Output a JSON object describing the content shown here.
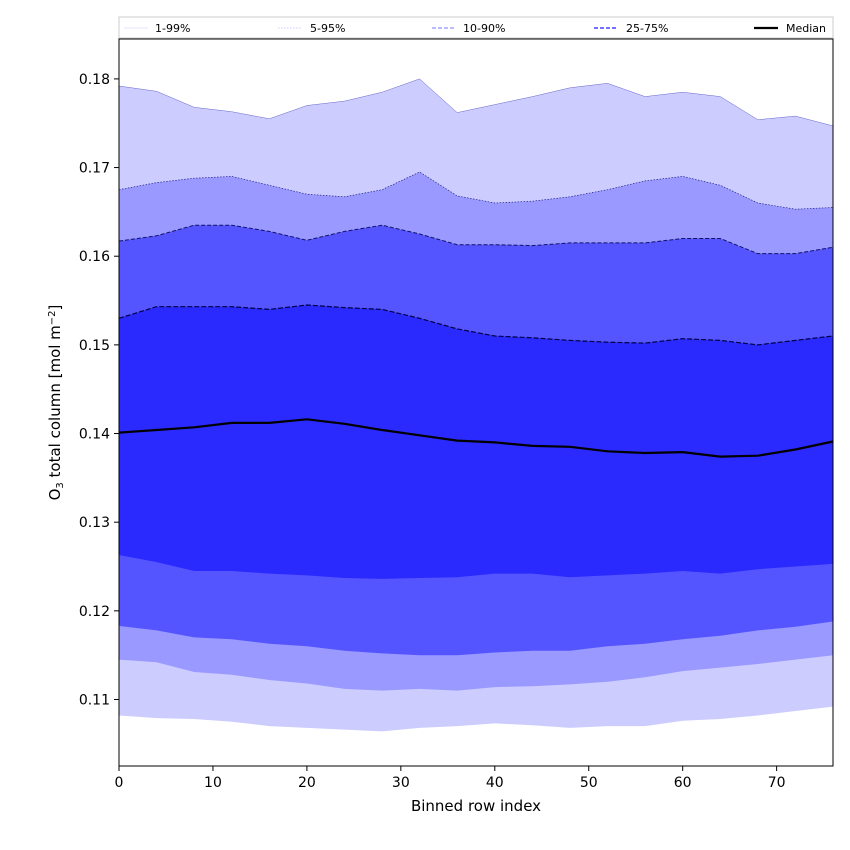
{
  "chart_data": {
    "type": "area",
    "xlabel": "Binned row index",
    "ylabel_prefix": "O",
    "ylabel_sub": "3",
    "ylabel_middle": " total column [mol m",
    "ylabel_sup": "−2",
    "ylabel_suffix": "]",
    "xlim": [
      0,
      76
    ],
    "ylim": [
      0.1025,
      0.1845
    ],
    "x_ticks": [
      0,
      10,
      20,
      30,
      40,
      50,
      60,
      70
    ],
    "y_ticks": [
      0.11,
      0.12,
      0.13,
      0.14,
      0.15,
      0.16,
      0.17,
      0.18
    ],
    "legend_position": "top",
    "legend": [
      {
        "label": "1-99%",
        "color": "#ccccff",
        "dash": "solid",
        "width": 0.6
      },
      {
        "label": "5-95%",
        "color": "#9999ff",
        "dash": "dotted",
        "width": 0.6
      },
      {
        "label": "10-90%",
        "color": "#7777ff",
        "dash": "dashed",
        "width": 1.0
      },
      {
        "label": "25-75%",
        "color": "#4444ff",
        "dash": "dashed",
        "width": 1.4
      },
      {
        "label": "Median",
        "color": "#000000",
        "dash": "solid",
        "width": 2.2
      }
    ],
    "x": [
      0,
      4,
      8,
      12,
      16,
      20,
      24,
      28,
      32,
      36,
      40,
      44,
      48,
      52,
      56,
      60,
      64,
      68,
      72,
      76
    ],
    "bands": [
      {
        "name": "1-99%",
        "fill": "#ccccff",
        "edge": "#7777cc",
        "edge_width": 0.5,
        "dash": "",
        "lower": [
          0.1082,
          0.1079,
          0.1078,
          0.1075,
          0.107,
          0.1068,
          0.1066,
          0.1064,
          0.1068,
          0.107,
          0.1073,
          0.1071,
          0.1068,
          0.107,
          0.107,
          0.1076,
          0.1078,
          0.1082,
          0.1087,
          0.1092
        ],
        "upper": [
          0.1792,
          0.1786,
          0.1768,
          0.1763,
          0.1755,
          0.177,
          0.1775,
          0.1785,
          0.18,
          0.1762,
          0.1771,
          0.178,
          0.179,
          0.1795,
          0.178,
          0.1785,
          0.178,
          0.1754,
          0.1758,
          0.1747
        ]
      },
      {
        "name": "5-95%",
        "fill": "#9999ff",
        "edge": "#333399",
        "edge_width": 0.6,
        "dash": "1.5,1.5",
        "lower": [
          0.1145,
          0.1142,
          0.1131,
          0.1128,
          0.1122,
          0.1118,
          0.1112,
          0.111,
          0.1112,
          0.111,
          0.1114,
          0.1115,
          0.1117,
          0.112,
          0.1125,
          0.1132,
          0.1136,
          0.114,
          0.1145,
          0.115
        ]
      },
      {
        "name": "10-90%",
        "fill": "#5555ff",
        "edge": "#1a1a80",
        "edge_width": 1.0,
        "dash": "4,2",
        "lower": [
          0.1183,
          0.1178,
          0.117,
          0.1168,
          0.1163,
          0.116,
          0.1155,
          0.1152,
          0.115,
          0.115,
          0.1153,
          0.1155,
          0.1155,
          0.116,
          0.1163,
          0.1168,
          0.1172,
          0.1178,
          0.1182,
          0.1188
        ],
        "upper": [
          0.1675,
          0.1683,
          0.1688,
          0.169,
          0.168,
          0.167,
          0.1667,
          0.1675,
          0.1695,
          0.1668,
          0.166,
          0.1662,
          0.1667,
          0.1675,
          0.1685,
          0.169,
          0.168,
          0.166,
          0.1653,
          0.1655
        ]
      },
      {
        "name": "25-75%",
        "fill": "#2a2aff",
        "edge": "#000066",
        "edge_width": 1.2,
        "dash": "5,2",
        "lower": [
          0.1263,
          0.1255,
          0.1245,
          0.1245,
          0.1242,
          0.124,
          0.1237,
          0.1236,
          0.1237,
          0.1238,
          0.1242,
          0.1242,
          0.1238,
          0.124,
          0.1242,
          0.1245,
          0.1242,
          0.1247,
          0.125,
          0.1253
        ],
        "upper": [
          0.1617,
          0.1623,
          0.1635,
          0.1635,
          0.1628,
          0.1618,
          0.1628,
          0.1635,
          0.1625,
          0.1613,
          0.1613,
          0.1612,
          0.1615,
          0.1615,
          0.1615,
          0.162,
          0.162,
          0.1603,
          0.1603,
          0.161
        ]
      },
      {
        "name": "Median-core",
        "fill": "#2a2aff",
        "edge": "#000066",
        "edge_width": 1.2,
        "dash": "5,2",
        "upper": [
          0.153,
          0.1543,
          0.1543,
          0.1543,
          0.154,
          0.1545,
          0.1542,
          0.154,
          0.153,
          0.1518,
          0.151,
          0.1508,
          0.1505,
          0.1503,
          0.1502,
          0.1507,
          0.1505,
          0.15,
          0.1505,
          0.151
        ]
      }
    ],
    "median": [
      0.1401,
      0.1404,
      0.1407,
      0.1412,
      0.1412,
      0.1416,
      0.1411,
      0.1404,
      0.1398,
      0.1392,
      0.139,
      0.1386,
      0.1385,
      0.138,
      0.1378,
      0.1379,
      0.1374,
      0.1375,
      0.1382,
      0.1391
    ]
  }
}
